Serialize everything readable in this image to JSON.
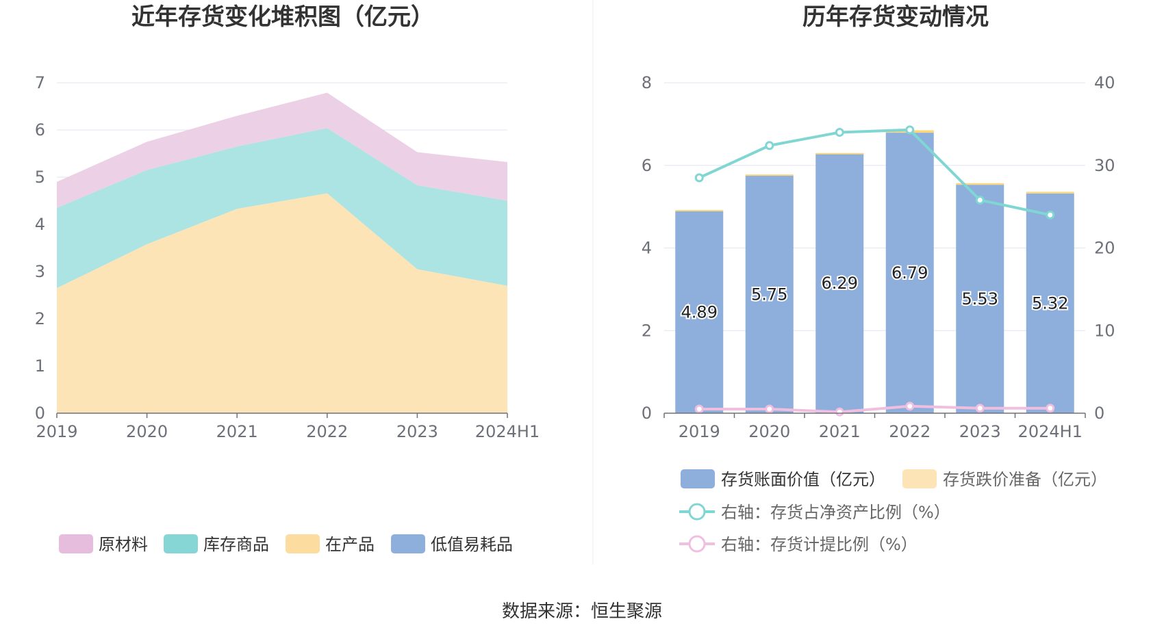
{
  "source_text": "数据来源：恒生聚源",
  "chart_data": [
    {
      "type": "area",
      "stacked": true,
      "title": "近年存货变化堆积图（亿元）",
      "categories": [
        "2019",
        "2020",
        "2021",
        "2022",
        "2023",
        "2024H1"
      ],
      "ylim": [
        0,
        7
      ],
      "yticks": [
        0,
        1,
        2,
        3,
        4,
        5,
        6,
        7
      ],
      "series": [
        {
          "name": "低值易耗品",
          "color": "#8eaedb",
          "values": [
            0,
            0,
            0,
            0,
            0,
            0
          ]
        },
        {
          "name": "在产品",
          "color": "#fde4b6",
          "values": [
            2.65,
            3.58,
            4.33,
            4.66,
            3.05,
            2.7
          ]
        },
        {
          "name": "库存商品",
          "color": "#ace3e3",
          "values": [
            1.7,
            1.57,
            1.32,
            1.38,
            1.78,
            1.8
          ]
        },
        {
          "name": "原材料",
          "color": "#ecd0e5",
          "values": [
            0.55,
            0.6,
            0.65,
            0.75,
            0.7,
            0.82
          ]
        }
      ],
      "legend": [
        {
          "name": "原材料",
          "color": "#e6bddc"
        },
        {
          "name": "库存商品",
          "color": "#86d6d6"
        },
        {
          "name": "在产品",
          "color": "#fddc9f"
        },
        {
          "name": "低值易耗品",
          "color": "#8eaedb"
        }
      ]
    },
    {
      "type": "bar",
      "title": "历年存货变动情况",
      "categories": [
        "2019",
        "2020",
        "2021",
        "2022",
        "2023",
        "2024H1"
      ],
      "ylim": [
        0,
        8
      ],
      "yticks": [
        0,
        2,
        4,
        6,
        8
      ],
      "y2lim": [
        0,
        40
      ],
      "y2ticks": [
        0,
        10,
        20,
        30,
        40
      ],
      "bars": [
        {
          "name": "存货账面价值（亿元）",
          "color": "#8eaedb",
          "values": [
            4.89,
            5.75,
            6.29,
            6.79,
            5.53,
            5.32
          ],
          "labels": [
            "4.89",
            "5.75",
            "6.29",
            "6.79",
            "5.53",
            "5.32"
          ]
        },
        {
          "name": "存货跌价准备（亿元）",
          "color": "#fde4b6",
          "values": [
            0.03,
            0.03,
            0.01,
            0.06,
            0.04,
            0.04
          ]
        }
      ],
      "lines": [
        {
          "name": "右轴：存货占净资产比例（%）",
          "color": "#7fd6d3",
          "values": [
            28.5,
            32.4,
            34.0,
            34.3,
            25.8,
            24.0
          ]
        },
        {
          "name": "右轴：存货计提比例（%）",
          "color": "#f0bfe0",
          "values": [
            0.5,
            0.5,
            0.15,
            0.85,
            0.6,
            0.6
          ]
        }
      ]
    }
  ]
}
